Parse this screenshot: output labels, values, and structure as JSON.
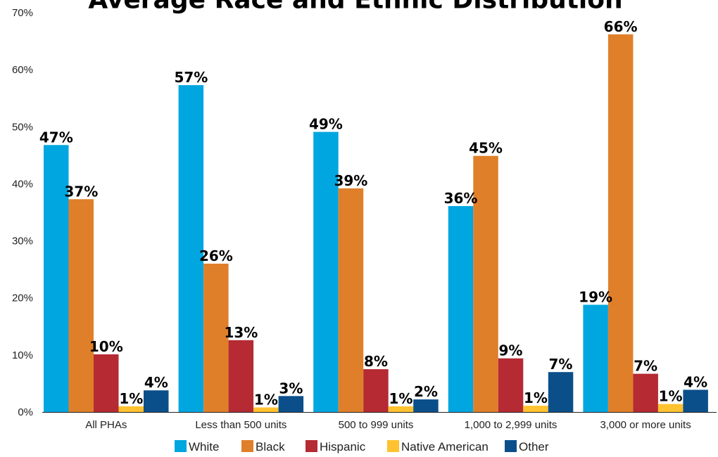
{
  "chart_data": {
    "type": "bar",
    "title": "Average Race and Ethnic Distribution",
    "xlabel": "",
    "ylabel": "",
    "ylim": [
      0,
      70
    ],
    "yticks": [
      "0%",
      "10%",
      "20%",
      "30%",
      "40%",
      "50%",
      "60%",
      "70%"
    ],
    "categories": [
      "All PHAs",
      "Less than 500 units",
      "500 to 999 units",
      "1,000 to 2,999 units",
      "3,000 or more units"
    ],
    "legend_position": "bottom",
    "grid": false,
    "series": [
      {
        "name": "White",
        "color": "#00A6DF",
        "values": [
          46.8,
          57.3,
          49.1,
          36.1,
          18.8
        ],
        "labels": [
          "47%",
          "57%",
          "49%",
          "36%",
          "19%"
        ]
      },
      {
        "name": "Black",
        "color": "#E07F2A",
        "values": [
          37.3,
          26.0,
          39.2,
          44.9,
          66.2
        ],
        "labels": [
          "37%",
          "26%",
          "39%",
          "45%",
          "66%"
        ]
      },
      {
        "name": "Hispanic",
        "color": "#B52A33",
        "values": [
          10.1,
          12.6,
          7.5,
          9.4,
          6.7
        ],
        "labels": [
          "10%",
          "13%",
          "8%",
          "9%",
          "7%"
        ]
      },
      {
        "name": "Native American",
        "color": "#FFC230",
        "values": [
          1.0,
          0.8,
          1.0,
          1.1,
          1.4
        ],
        "labels": [
          "1%",
          "1%",
          "1%",
          "1%",
          "1%"
        ]
      },
      {
        "name": "Other",
        "color": "#0B4F8A",
        "values": [
          3.8,
          2.8,
          2.2,
          7.0,
          3.9
        ],
        "labels": [
          "4%",
          "3%",
          "2%",
          "7%",
          "4%"
        ]
      }
    ]
  }
}
